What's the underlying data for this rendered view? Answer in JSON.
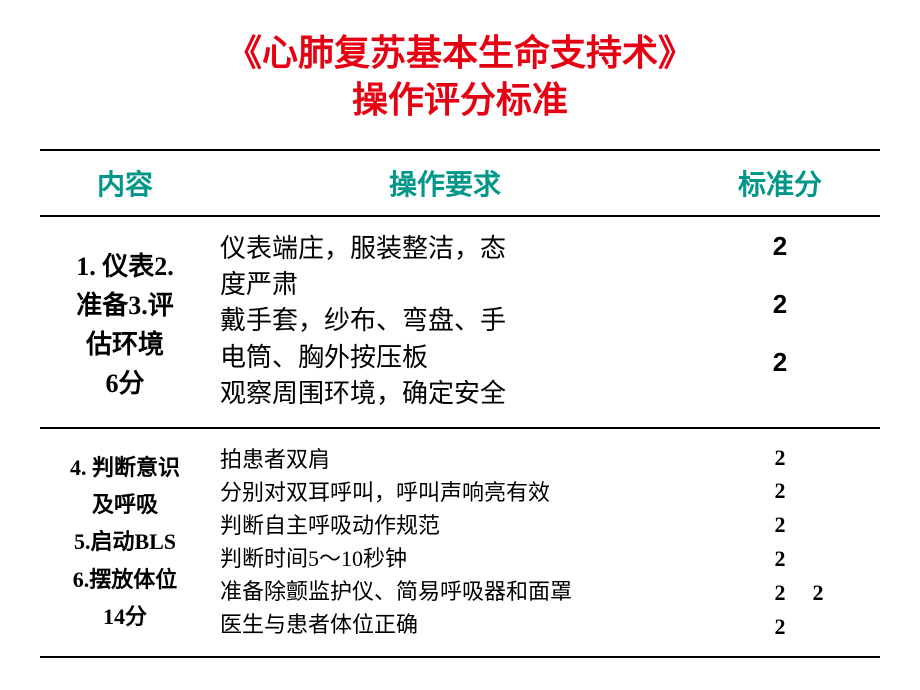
{
  "title_line1": "《心肺复苏基本生命支持术》",
  "title_line2": "操作评分标准",
  "headers": {
    "content": "内容",
    "requirement": "操作要求",
    "score": "标准分"
  },
  "row1": {
    "content_l1": "1. 仪表2.",
    "content_l2": "准备3.评",
    "content_l3": "估环境",
    "content_l4": "6分",
    "req_l1": "仪表端庄，服装整洁，态",
    "req_l2": "度严肃",
    "req_l3": "戴手套，纱布、弯盘、手",
    "req_l4": "电筒、胸外按压板",
    "req_l5": "观察周围环境，确定安全",
    "score1": "2",
    "score2": "2",
    "score3": "2"
  },
  "row2": {
    "content_l1": "4. 判断意识",
    "content_l2": "及呼吸",
    "content_l3": "5.启动BLS",
    "content_l4": "6.摆放体位",
    "content_l5": "14分",
    "req_l1": "拍患者双肩",
    "req_l2": "分别对双耳呼叫，呼叫声响亮有效",
    "req_l3": "判断自主呼吸动作规范",
    "req_l4": "判断时间5～10秒钟",
    "req_l5": "准备除颤监护仪、简易呼吸器和面罩",
    "req_l6": "医生与患者体位正确",
    "score1": "2",
    "score2": "2",
    "score3": "2",
    "score4": "2",
    "score5": "2",
    "score5_extra": "2",
    "score6": "2"
  },
  "colors": {
    "title": "#e60012",
    "header": "#009688",
    "text": "#000000",
    "border": "#000000",
    "background": "#ffffff"
  }
}
